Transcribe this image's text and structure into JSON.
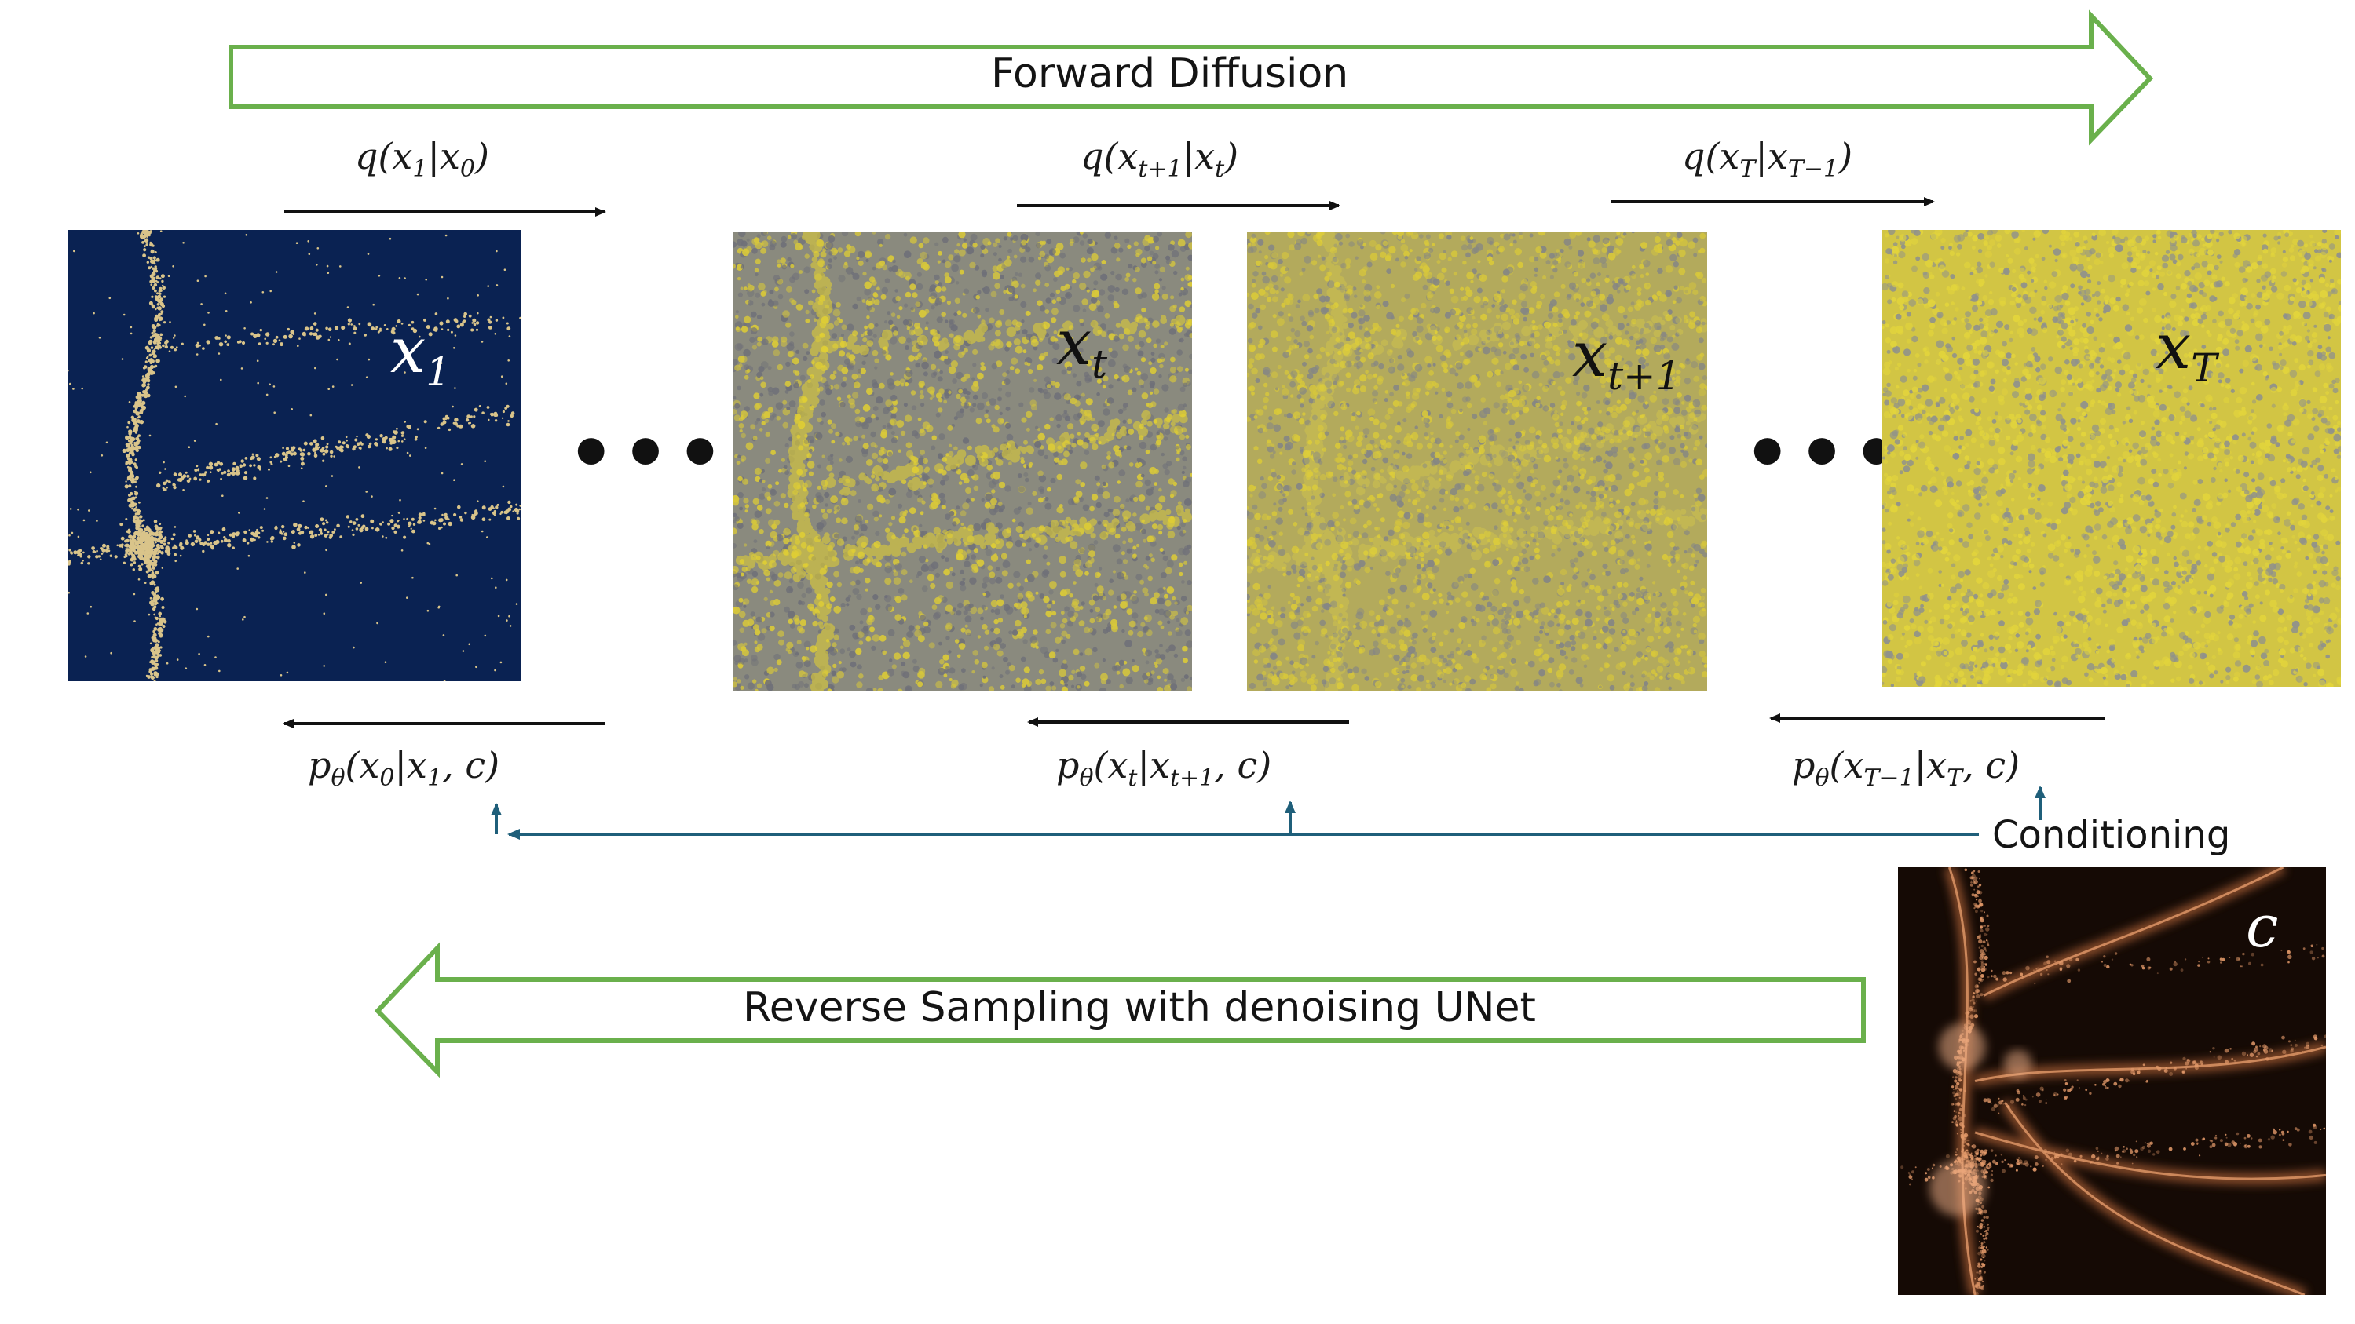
{
  "forward_banner": "Forward Diffusion",
  "reverse_banner": "Reverse Sampling with denoising UNet",
  "conditioning_label": "Conditioning",
  "ellipsis": "•••",
  "forward_steps": [
    {
      "fn": "q",
      "target": "x",
      "target_sub": "1",
      "given": "x",
      "given_sub": "0"
    },
    {
      "fn": "q",
      "target": "x",
      "target_sub": "t+1",
      "given": "x",
      "given_sub": "t"
    },
    {
      "fn": "q",
      "target": "x",
      "target_sub": "T",
      "given": "x",
      "given_sub": "T−1"
    }
  ],
  "reverse_steps": [
    {
      "fn": "p",
      "fn_sub": "θ",
      "target": "x",
      "target_sub": "0",
      "given": "x",
      "given_sub": "1",
      "cond": "c"
    },
    {
      "fn": "p",
      "fn_sub": "θ",
      "target": "x",
      "target_sub": "t",
      "given": "x",
      "given_sub": "t+1",
      "cond": "c"
    },
    {
      "fn": "p",
      "fn_sub": "θ",
      "target": "x",
      "target_sub": "T−1",
      "given": "x",
      "given_sub": "T",
      "cond": "c"
    }
  ],
  "panels": [
    {
      "var": "x",
      "sub": "1",
      "style": "sparse-dark"
    },
    {
      "var": "x",
      "sub": "t",
      "style": "noisy-mid"
    },
    {
      "var": "x",
      "sub": "t+1",
      "style": "noisy-high"
    },
    {
      "var": "x",
      "sub": "T",
      "style": "pure-noise"
    },
    {
      "var": "c",
      "sub": "",
      "style": "conditioning-field"
    }
  ],
  "colors": {
    "banner_outline": "#6ab04c",
    "conditioning_line": "#1f5f7a",
    "panel_dark_bg": "#0a2252",
    "noise_yellow": "#d8c83a",
    "noise_gray": "#8c8c86",
    "cond_bg": "#150a05",
    "cond_glow": "#e39a6a"
  }
}
